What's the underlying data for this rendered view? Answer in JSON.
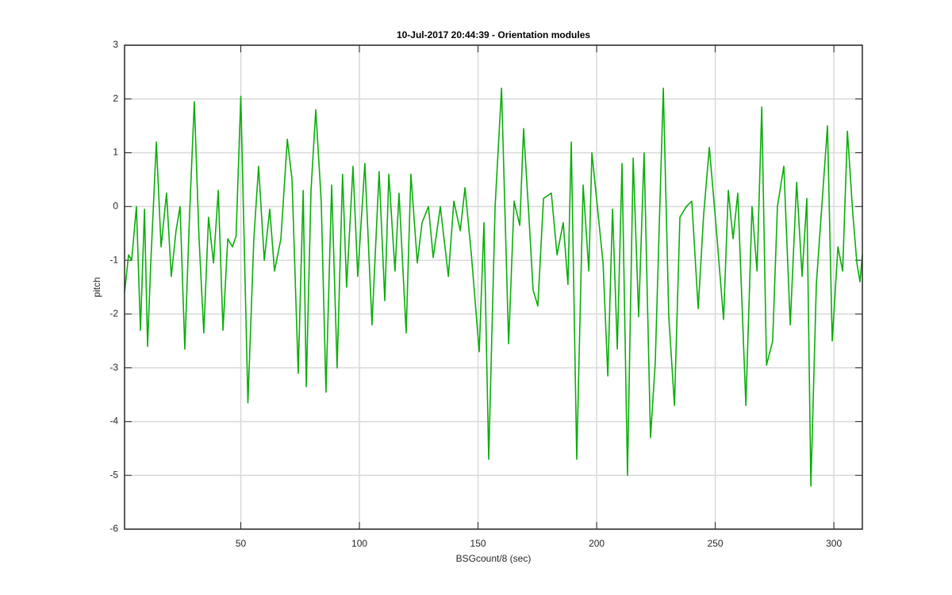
{
  "chart_data": {
    "type": "line",
    "title": "10-Jul-2017 20:44:39 - Orientation modules",
    "xlabel": "BSGcount/8 (sec)",
    "ylabel": "pitch",
    "color": "#0aae0a",
    "grid": true,
    "xlim": [
      1,
      312
    ],
    "ylim": [
      -6,
      3
    ],
    "xticks": [
      50,
      100,
      150,
      200,
      250,
      300
    ],
    "yticks": [
      -6,
      -5,
      -4,
      -3,
      -2,
      -1,
      0,
      1,
      2,
      3
    ],
    "x": [
      1,
      2.7,
      4,
      6,
      7.7,
      9.4,
      10.7,
      12,
      14.4,
      16.4,
      18.7,
      20.7,
      22.7,
      24.4,
      26.4,
      28.4,
      30.4,
      32.4,
      34.4,
      36.4,
      38.5,
      40.5,
      42.5,
      44.5,
      46.5,
      48,
      50,
      53,
      55.5,
      57.5,
      59.9,
      62.2,
      64.2,
      66.9,
      69.6,
      71.6,
      74.2,
      76.3,
      77.6,
      79.6,
      81.6,
      83.9,
      85.9,
      88.3,
      90.6,
      92.9,
      94.6,
      97.3,
      99.3,
      102.3,
      105.3,
      108.3,
      110.7,
      112.4,
      115,
      116.7,
      119.7,
      121.7,
      124.4,
      126.4,
      129.1,
      131.1,
      134.1,
      137.5,
      139.8,
      142.5,
      144.5,
      147.2,
      150.5,
      152.5,
      154.5,
      157.2,
      159.9,
      162.9,
      165.2,
      167.6,
      169.2,
      171.6,
      173.2,
      175.2,
      177.6,
      180.9,
      183.3,
      185.9,
      187.9,
      189.3,
      191.6,
      194.3,
      196.7,
      198,
      200.3,
      202.7,
      204.7,
      206.7,
      208.7,
      210.7,
      213,
      215.4,
      217.7,
      220,
      222.7,
      224.7,
      228.1,
      230.4,
      232.8,
      235.1,
      237.8,
      240.1,
      242.8,
      245.1,
      247.5,
      250.5,
      253.5,
      255.5,
      257.5,
      259.5,
      262.9,
      265.5,
      267.6,
      269.6,
      271.6,
      274.2,
      276.2,
      278.9,
      281.6,
      284.3,
      286.6,
      288.6,
      290.3,
      292.6,
      294.9,
      297.3,
      299.3,
      301.7,
      303.7,
      305.7,
      308,
      309.7,
      311,
      312
    ],
    "values": [
      -1.6,
      -0.9,
      -1.0,
      0.0,
      -2.3,
      -0.05,
      -2.6,
      -1.1,
      1.2,
      -0.75,
      0.25,
      -1.3,
      -0.45,
      0,
      -2.65,
      -0.15,
      1.95,
      -0.6,
      -2.35,
      -0.2,
      -1.05,
      0.3,
      -2.3,
      -0.6,
      -0.75,
      -0.55,
      2.05,
      -3.65,
      -0.6,
      0.75,
      -1.0,
      -0.05,
      -1.2,
      -0.6,
      1.25,
      0.5,
      -3.1,
      0.3,
      -3.35,
      0.3,
      1.8,
      0.1,
      -3.45,
      0.4,
      -3.0,
      0.6,
      -1.5,
      0.75,
      -1.3,
      0.8,
      -2.2,
      0.65,
      -1.75,
      0.6,
      -1.2,
      0.25,
      -2.35,
      0.6,
      -1.05,
      -0.3,
      0.0,
      -0.95,
      0,
      -1.3,
      0.1,
      -0.45,
      0.35,
      -0.9,
      -2.7,
      -0.3,
      -4.7,
      0.0,
      2.2,
      -2.55,
      0.1,
      -0.35,
      1.45,
      -0.3,
      -1.55,
      -1.85,
      0.15,
      0.25,
      -0.9,
      -0.3,
      -1.45,
      1.2,
      -4.7,
      0.4,
      -1.2,
      1.0,
      0.0,
      -1.05,
      -3.15,
      -0.05,
      -2.65,
      0.8,
      -5.0,
      0.9,
      -2.05,
      1.0,
      -4.3,
      -2.9,
      2.2,
      -2.05,
      -3.7,
      -0.2,
      0.0,
      0.1,
      -1.9,
      -0.15,
      1.1,
      -0.45,
      -2.1,
      0.3,
      -0.6,
      0.25,
      -3.7,
      0,
      -1.2,
      1.85,
      -2.95,
      -2.5,
      0.0,
      0.75,
      -2.2,
      0.45,
      -1.3,
      0.15,
      -5.2,
      -1.45,
      0,
      1.5,
      -2.5,
      -0.75,
      -1.2,
      1.4,
      -0.15,
      -1.05,
      -1.4,
      -0.9
    ]
  }
}
